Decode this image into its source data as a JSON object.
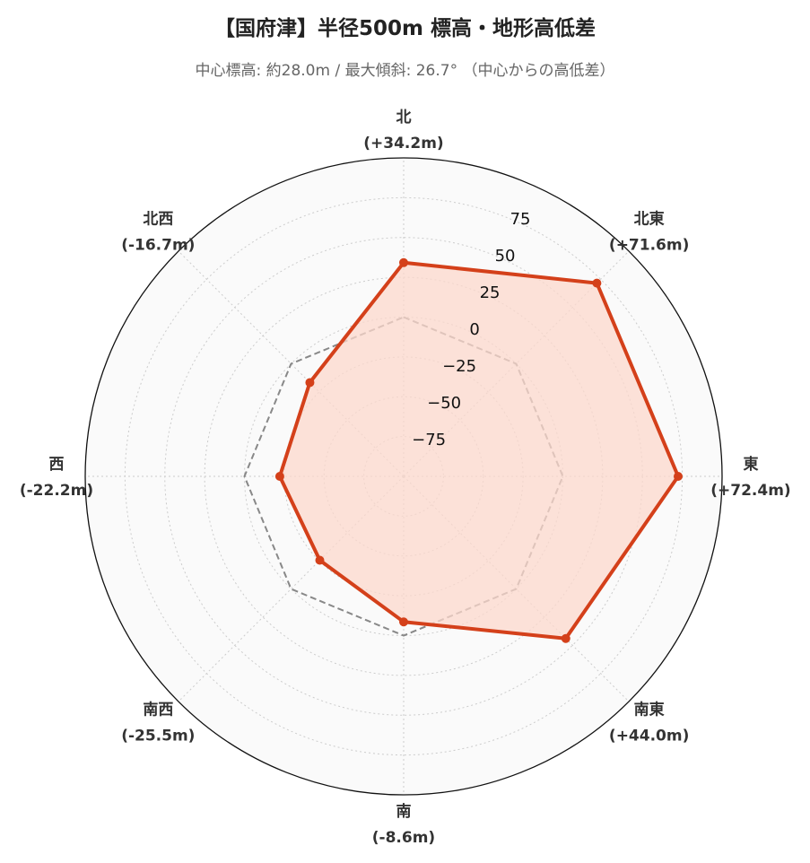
{
  "title": "【国府津】半径500m 標高・地形高低差",
  "subtitle": "中心標高: 約28.0m / 最大傾斜: 26.7° （中心からの高低差）",
  "colors": {
    "series_line": "#d4401a",
    "series_fill": "#fcd8cc",
    "reference_line": "#888888",
    "background": "#fafafa",
    "grid": "#cccccc"
  },
  "chart_data": {
    "type": "radar",
    "axis_range": [
      -100,
      100
    ],
    "ticks": [
      -75,
      -50,
      -25,
      0,
      25,
      50,
      75
    ],
    "tick_labels": [
      "−75",
      "−50",
      "−25",
      "0",
      "25",
      "50",
      "75"
    ],
    "grid": true,
    "reference_value": 0,
    "directions": [
      {
        "name": "北",
        "label": "(+34.2m)",
        "value": 34.2
      },
      {
        "name": "北東",
        "label": "(+71.6m)",
        "value": 71.6
      },
      {
        "name": "東",
        "label": "(+72.4m)",
        "value": 72.4
      },
      {
        "name": "南東",
        "label": "(+44.0m)",
        "value": 44.0
      },
      {
        "name": "南",
        "label": "(-8.6m)",
        "value": -8.6
      },
      {
        "name": "南西",
        "label": "(-25.5m)",
        "value": -25.5
      },
      {
        "name": "西",
        "label": "(-22.2m)",
        "value": -22.2
      },
      {
        "name": "北西",
        "label": "(-16.7m)",
        "value": -16.7
      }
    ]
  }
}
